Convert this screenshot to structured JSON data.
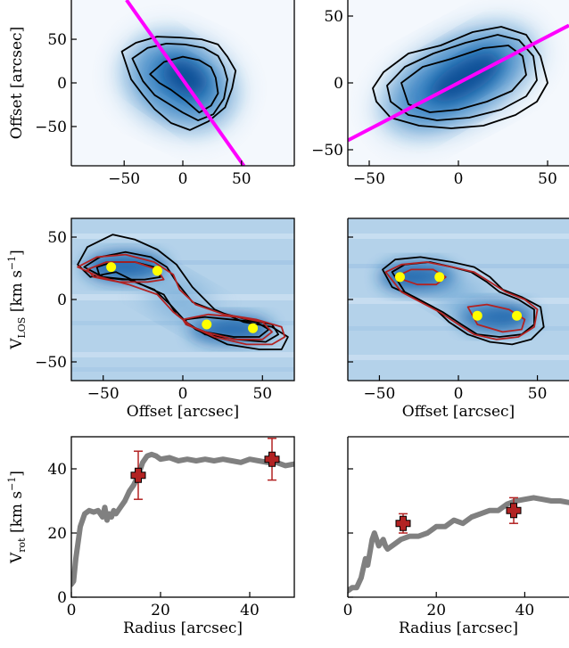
{
  "chart_data": [
    {
      "id": "moment0_left",
      "type": "heatmap",
      "title": "",
      "xlabel": "",
      "ylabel": "Offset [arcsec]",
      "xlim": [
        -95,
        95
      ],
      "ylim": [
        -95,
        95
      ],
      "xticks": [
        -50,
        0,
        50
      ],
      "yticks": [
        -50,
        0,
        50
      ],
      "xtick_labels": [
        "−50",
        "0",
        "50"
      ],
      "ytick_labels": [
        "−50",
        "0",
        "50"
      ],
      "colormap": "Blues",
      "contour_color": "#000000",
      "line_color": "#ff00ff",
      "line": {
        "x": [
          -48,
          52
        ],
        "y": [
          95,
          -95
        ]
      },
      "contours": [
        {
          "x": [
            -52,
            -40,
            -22,
            -2,
            16,
            30,
            38,
            45,
            42,
            36,
            22,
            6,
            -10,
            -24,
            -34,
            -44,
            -52
          ],
          "y": [
            36,
            46,
            53,
            52,
            50,
            44,
            30,
            14,
            -6,
            -28,
            -44,
            -54,
            -46,
            -30,
            -14,
            4,
            36
          ]
        },
        {
          "x": [
            -43,
            -30,
            -14,
            2,
            18,
            30,
            35,
            38,
            35,
            26,
            13,
            0,
            -12,
            -24,
            -34,
            -43
          ],
          "y": [
            28,
            40,
            45,
            44,
            40,
            31,
            18,
            4,
            -18,
            -36,
            -43,
            -34,
            -24,
            -14,
            2,
            28
          ]
        },
        {
          "x": [
            -28,
            -16,
            0,
            14,
            24,
            28,
            30,
            24,
            14,
            2,
            -10,
            -20,
            -28
          ],
          "y": [
            10,
            24,
            30,
            26,
            18,
            6,
            -12,
            -26,
            -34,
            -20,
            -8,
            0,
            10
          ]
        }
      ]
    },
    {
      "id": "moment0_right",
      "type": "heatmap",
      "title": "",
      "xlabel": "",
      "ylabel": "",
      "xlim": [
        -62,
        62
      ],
      "ylim": [
        -62,
        62
      ],
      "xticks": [
        -50,
        0,
        50
      ],
      "yticks": [
        -50,
        0,
        50
      ],
      "xtick_labels": [
        "−50",
        "0",
        "50"
      ],
      "ytick_labels": [
        "−50",
        "0",
        "50"
      ],
      "colormap": "Blues",
      "contour_color": "#000000",
      "line_color": "#ff00ff",
      "line": {
        "x": [
          -62,
          62
        ],
        "y": [
          -43,
          43
        ]
      },
      "contours": [
        {
          "x": [
            -48,
            -42,
            -28,
            -10,
            8,
            24,
            38,
            46,
            50,
            44,
            32,
            14,
            -4,
            -22,
            -38,
            -46,
            -48
          ],
          "y": [
            -4,
            8,
            22,
            28,
            38,
            42,
            36,
            20,
            0,
            -14,
            -24,
            -32,
            -34,
            -32,
            -26,
            -14,
            -4
          ]
        },
        {
          "x": [
            -40,
            -30,
            -14,
            4,
            22,
            34,
            42,
            44,
            38,
            24,
            6,
            -12,
            -28,
            -38,
            -40
          ],
          "y": [
            -2,
            12,
            22,
            30,
            36,
            32,
            20,
            2,
            -10,
            -20,
            -26,
            -28,
            -24,
            -14,
            -2
          ]
        },
        {
          "x": [
            -32,
            -20,
            -4,
            14,
            28,
            36,
            38,
            30,
            16,
            0,
            -16,
            -28,
            -32
          ],
          "y": [
            0,
            12,
            18,
            26,
            28,
            20,
            6,
            -6,
            -14,
            -20,
            -22,
            -16,
            0
          ]
        }
      ]
    },
    {
      "id": "pv_left",
      "type": "heatmap",
      "title": "",
      "xlabel": "Offset [arcsec]",
      "ylabel": "V_LOS [km s^-1]",
      "xlim": [
        -70,
        70
      ],
      "ylim": [
        -65,
        65
      ],
      "xticks": [
        -50,
        0,
        50
      ],
      "yticks": [
        -50,
        0,
        50
      ],
      "xtick_labels": [
        "−50",
        "0",
        "50"
      ],
      "ytick_labels": [
        "−50",
        "0",
        "50"
      ],
      "colormap": "Blues",
      "contour_color": "#000000",
      "model_contour_color": "#b22222",
      "contours": [
        {
          "x": [
            -66,
            -60,
            -44,
            -30,
            -16,
            -4,
            6,
            20,
            38,
            56,
            66,
            62,
            48,
            28,
            8,
            -4,
            -12,
            -26,
            -42,
            -58,
            -66
          ],
          "y": [
            28,
            42,
            52,
            48,
            40,
            28,
            10,
            -8,
            -18,
            -22,
            -30,
            -40,
            -40,
            -36,
            -24,
            -12,
            4,
            12,
            22,
            18,
            28
          ]
        },
        {
          "x": [
            -62,
            -52,
            -36,
            -20,
            -10,
            -4,
            6,
            22,
            40,
            56,
            60,
            52,
            34,
            14,
            2,
            -8,
            -18,
            -34,
            -50,
            -62
          ],
          "y": [
            26,
            34,
            38,
            34,
            26,
            14,
            -2,
            -10,
            -16,
            -20,
            -28,
            -34,
            -32,
            -28,
            -18,
            -4,
            8,
            16,
            18,
            26
          ]
        },
        {
          "x": [
            -54,
            -44,
            -30,
            -18,
            -14,
            -24,
            -38,
            -52,
            -54
          ],
          "y": [
            26,
            30,
            30,
            26,
            18,
            16,
            16,
            18,
            26
          ]
        },
        {
          "x": [
            2,
            14,
            30,
            46,
            54,
            48,
            32,
            14,
            2,
            2
          ],
          "y": [
            -16,
            -14,
            -16,
            -18,
            -24,
            -30,
            -30,
            -26,
            -20,
            -16
          ]
        }
      ],
      "model_contours": [
        {
          "x": [
            -66,
            -54,
            -36,
            -18,
            -6,
            -2,
            8,
            26,
            46,
            62,
            64,
            56,
            40,
            20,
            6,
            -6,
            -16,
            -34,
            -52,
            -66
          ],
          "y": [
            26,
            34,
            36,
            30,
            20,
            8,
            -4,
            -12,
            -16,
            -22,
            -30,
            -36,
            -36,
            -30,
            -22,
            -10,
            4,
            12,
            18,
            26
          ]
        },
        {
          "x": [
            -60,
            -48,
            -30,
            -16,
            -12,
            -22,
            -40,
            -56,
            -60
          ],
          "y": [
            24,
            30,
            30,
            24,
            16,
            14,
            14,
            18,
            24
          ]
        },
        {
          "x": [
            0,
            16,
            34,
            50,
            56,
            50,
            32,
            14,
            2,
            0
          ],
          "y": [
            -16,
            -12,
            -14,
            -18,
            -26,
            -32,
            -32,
            -26,
            -20,
            -16
          ]
        }
      ],
      "points": {
        "x": [
          -45,
          -16,
          15,
          44
        ],
        "y": [
          26,
          23,
          -20,
          -23
        ]
      },
      "point_color": "#ffff00"
    },
    {
      "id": "pv_right",
      "type": "heatmap",
      "title": "",
      "xlabel": "Offset [arcsec]",
      "ylabel": "",
      "xlim": [
        -70,
        70
      ],
      "ylim": [
        -65,
        65
      ],
      "xticks": [
        -50,
        0,
        50
      ],
      "yticks": [
        -50,
        0,
        50
      ],
      "xtick_labels": [
        "−50",
        "0",
        "50"
      ],
      "ytick_labels": [],
      "colormap": "Blues",
      "contour_color": "#000000",
      "model_contour_color": "#b22222",
      "contours": [
        {
          "x": [
            -48,
            -40,
            -24,
            -4,
            10,
            20,
            28,
            40,
            52,
            54,
            46,
            34,
            20,
            6,
            -6,
            -16,
            -28,
            -42,
            -48
          ],
          "y": [
            24,
            32,
            34,
            30,
            26,
            18,
            8,
            2,
            -6,
            -22,
            -32,
            -36,
            -34,
            -28,
            -18,
            -6,
            2,
            10,
            24
          ]
        },
        {
          "x": [
            -42,
            -34,
            -18,
            -4,
            8,
            18,
            26,
            38,
            48,
            48,
            40,
            26,
            12,
            2,
            -10,
            -22,
            -34,
            -42
          ],
          "y": [
            22,
            28,
            30,
            26,
            22,
            14,
            6,
            0,
            -8,
            -20,
            -28,
            -30,
            -28,
            -20,
            -10,
            -2,
            6,
            22
          ]
        }
      ],
      "model_contours": [
        {
          "x": [
            -46,
            -36,
            -20,
            -4,
            10,
            20,
            30,
            42,
            50,
            48,
            38,
            24,
            10,
            0,
            -12,
            -24,
            -36,
            -46
          ],
          "y": [
            22,
            28,
            30,
            26,
            22,
            14,
            6,
            0,
            -8,
            -22,
            -30,
            -32,
            -28,
            -20,
            -10,
            -2,
            6,
            22
          ]
        },
        {
          "x": [
            -40,
            -30,
            -16,
            -8,
            -14,
            -26,
            -40
          ],
          "y": [
            18,
            24,
            24,
            18,
            12,
            12,
            18
          ]
        },
        {
          "x": [
            6,
            18,
            32,
            42,
            40,
            28,
            12,
            6
          ],
          "y": [
            -6,
            -4,
            -8,
            -16,
            -24,
            -26,
            -20,
            -6
          ]
        }
      ],
      "points": {
        "x": [
          -37,
          -12,
          12,
          37
        ],
        "y": [
          18,
          18,
          -13,
          -13
        ]
      },
      "point_color": "#ffff00"
    },
    {
      "id": "rotation_left",
      "type": "line",
      "title": "",
      "xlabel": "Radius [arcsec]",
      "ylabel": "V_rot [km s^-1]",
      "xlim": [
        0,
        50
      ],
      "ylim": [
        0,
        50
      ],
      "xticks": [
        0,
        20,
        40
      ],
      "yticks": [
        0,
        20,
        40
      ],
      "xtick_labels": [
        "0",
        "20",
        "40"
      ],
      "ytick_labels": [
        "0",
        "20",
        "40"
      ],
      "line_color": "#808080",
      "series": [
        {
          "x": [
            0,
            0.5,
            1,
            2,
            3,
            4,
            5,
            6,
            7,
            7.5,
            8,
            8.5,
            9,
            9.5,
            10,
            11,
            12,
            13,
            14,
            15,
            16,
            17,
            18,
            19,
            20,
            22,
            24,
            26,
            28,
            30,
            32,
            34,
            36,
            38,
            40,
            42,
            44,
            46,
            48,
            50
          ],
          "y": [
            4,
            5,
            12,
            22,
            26,
            27,
            26.5,
            27,
            25,
            28,
            24,
            26,
            25,
            27,
            26,
            28,
            30,
            33,
            35,
            38,
            42,
            44,
            44.5,
            44,
            43,
            43.5,
            42.5,
            43,
            42.5,
            43,
            42.5,
            43,
            42.5,
            42,
            43,
            42.5,
            42,
            42,
            41,
            41.5
          ]
        }
      ],
      "markers": {
        "x": [
          15,
          45
        ],
        "y": [
          38,
          43
        ],
        "yerr": [
          7.5,
          6.5
        ],
        "color": "#b22222"
      }
    },
    {
      "id": "rotation_right",
      "type": "line",
      "title": "",
      "xlabel": "Radius [arcsec]",
      "ylabel": "",
      "xlim": [
        0,
        50
      ],
      "ylim": [
        0,
        50
      ],
      "xticks": [
        0,
        20,
        40
      ],
      "yticks": [
        0,
        20,
        40
      ],
      "xtick_labels": [
        "0",
        "20",
        "40"
      ],
      "ytick_labels": [],
      "line_color": "#808080",
      "series": [
        {
          "x": [
            0,
            1,
            2,
            3,
            4,
            4.5,
            5,
            5.5,
            6,
            7,
            8,
            8.5,
            9,
            10,
            11,
            12,
            14,
            16,
            18,
            20,
            22,
            24,
            26,
            28,
            30,
            32,
            34,
            36,
            38,
            40,
            42,
            44,
            46,
            48,
            50
          ],
          "y": [
            2,
            3,
            3,
            6,
            12,
            10,
            14,
            18,
            20,
            16,
            18,
            16,
            15,
            16,
            17,
            18,
            19,
            19,
            20,
            22,
            22,
            24,
            23,
            25,
            26,
            27,
            27,
            29,
            30,
            30.5,
            31,
            30.5,
            30,
            30,
            29.5
          ]
        }
      ],
      "markers": {
        "x": [
          12.5,
          37.5
        ],
        "y": [
          23,
          27
        ],
        "yerr": [
          3,
          4
        ],
        "color": "#b22222"
      }
    }
  ]
}
